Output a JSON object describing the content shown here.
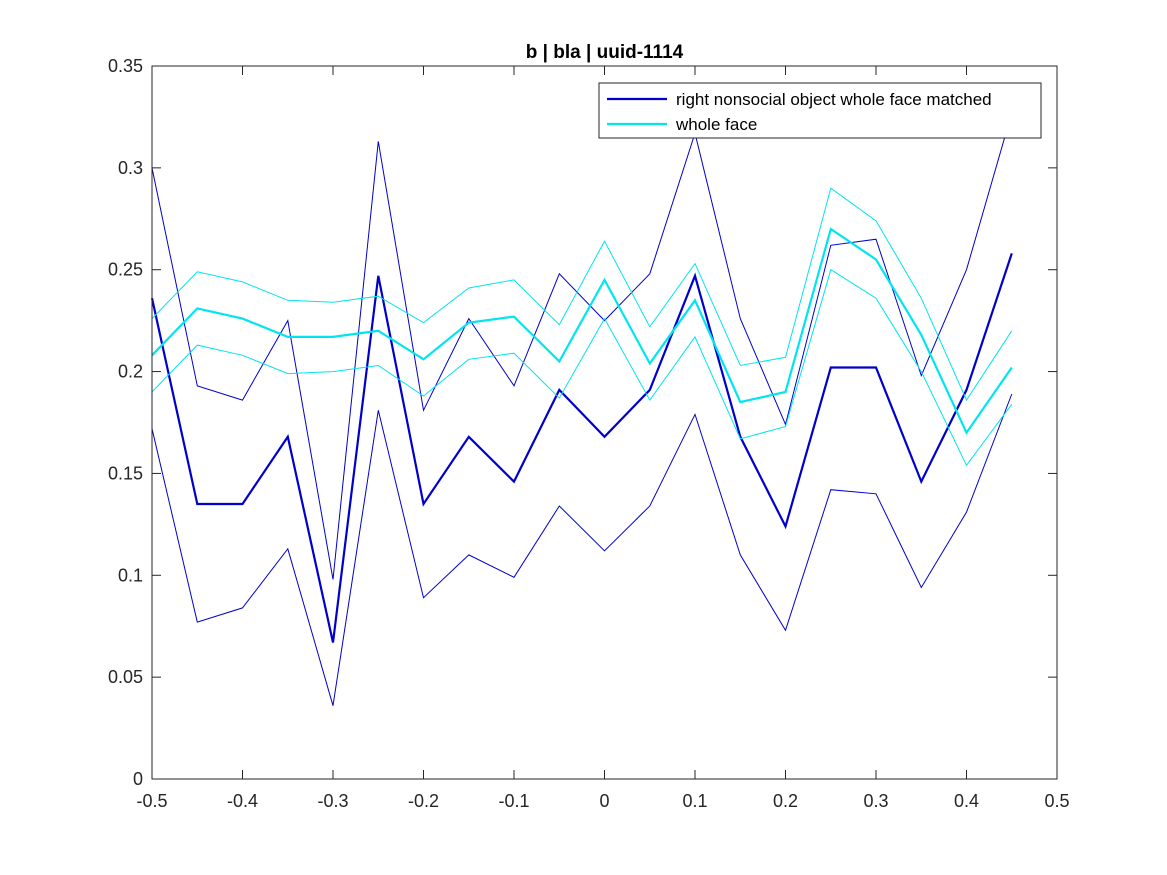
{
  "chart_data": {
    "type": "line",
    "title": "b | bla | uuid-1114",
    "xlabel": "",
    "ylabel": "",
    "xlim": [
      -0.5,
      0.5
    ],
    "ylim": [
      0,
      0.35
    ],
    "x_ticks": [
      "-0.5",
      "-0.4",
      "-0.3",
      "-0.2",
      "-0.1",
      "0",
      "0.1",
      "0.2",
      "0.3",
      "0.4",
      "0.5"
    ],
    "y_ticks": [
      "0",
      "0.05",
      "0.1",
      "0.15",
      "0.2",
      "0.25",
      "0.3",
      "0.35"
    ],
    "grid": false,
    "legend_position": "top-right",
    "x": [
      -0.5,
      -0.45,
      -0.4,
      -0.35,
      -0.3,
      -0.25,
      -0.2,
      -0.15,
      -0.1,
      -0.05,
      0,
      0.05,
      0.1,
      0.15,
      0.2,
      0.25,
      0.3,
      0.35,
      0.4,
      0.45
    ],
    "series": [
      {
        "name": "right nonsocial object whole face matched",
        "color": "#0000cc",
        "values": [
          0.236,
          0.135,
          0.135,
          0.168,
          0.067,
          0.247,
          0.135,
          0.168,
          0.146,
          0.191,
          0.168,
          0.191,
          0.247,
          0.168,
          0.124,
          0.202,
          0.202,
          0.146,
          0.191,
          0.258
        ],
        "upper": [
          0.3,
          0.193,
          0.186,
          0.225,
          0.098,
          0.313,
          0.181,
          0.226,
          0.193,
          0.248,
          0.225,
          0.248,
          0.317,
          0.226,
          0.174,
          0.262,
          0.265,
          0.198,
          0.25,
          0.327
        ],
        "lower": [
          0.172,
          0.077,
          0.084,
          0.113,
          0.036,
          0.181,
          0.089,
          0.11,
          0.099,
          0.134,
          0.112,
          0.134,
          0.179,
          0.11,
          0.073,
          0.142,
          0.14,
          0.094,
          0.131,
          0.189
        ]
      },
      {
        "name": "whole face",
        "color": "#00e5ee",
        "values": [
          0.208,
          0.231,
          0.226,
          0.217,
          0.217,
          0.22,
          0.206,
          0.224,
          0.227,
          0.205,
          0.245,
          0.204,
          0.235,
          0.185,
          0.19,
          0.27,
          0.255,
          0.218,
          0.17,
          0.202
        ],
        "upper": [
          0.226,
          0.249,
          0.244,
          0.235,
          0.234,
          0.237,
          0.224,
          0.241,
          0.245,
          0.223,
          0.264,
          0.222,
          0.253,
          0.203,
          0.207,
          0.29,
          0.274,
          0.236,
          0.186,
          0.22
        ],
        "lower": [
          0.19,
          0.213,
          0.208,
          0.199,
          0.2,
          0.203,
          0.188,
          0.206,
          0.209,
          0.187,
          0.226,
          0.186,
          0.217,
          0.167,
          0.173,
          0.25,
          0.236,
          0.2,
          0.154,
          0.184
        ]
      }
    ]
  }
}
